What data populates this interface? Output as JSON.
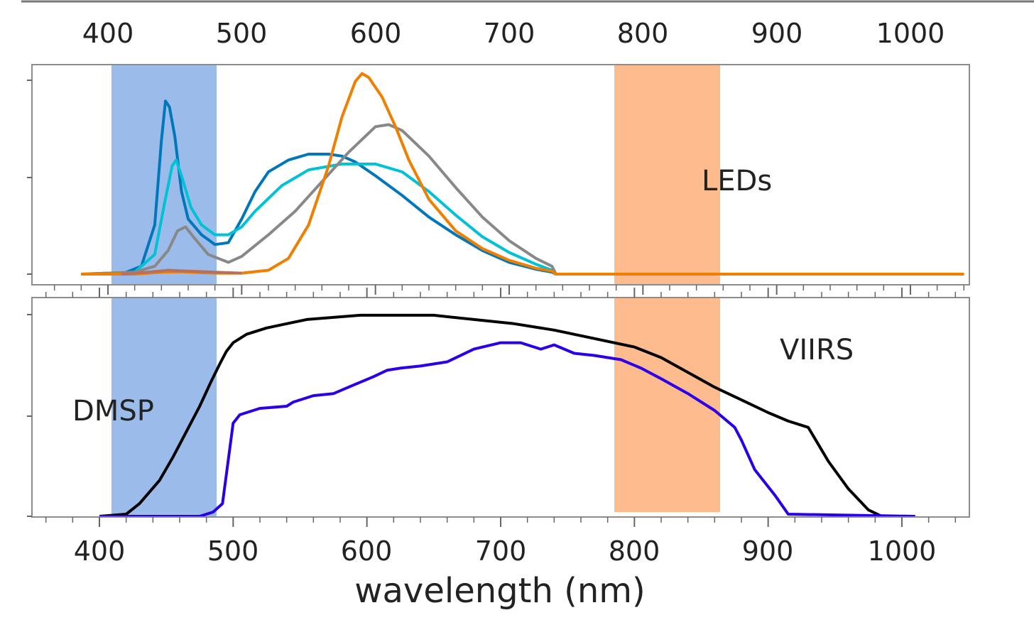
{
  "chart_data": [
    {
      "type": "line",
      "x_top_tick_labels": [
        "400",
        "500",
        "600",
        "700",
        "800",
        "900",
        "1000"
      ],
      "xlim": [
        360,
        1050
      ],
      "ylim": [
        0,
        1.05
      ],
      "annotation": "LEDs",
      "bands": [
        {
          "x0": 410,
          "x1": 488,
          "color": "#7aa6e3"
        },
        {
          "x0": 784,
          "x1": 863,
          "color": "#fdb482"
        }
      ],
      "series": [
        {
          "color": "#0077bb",
          "x": [
            380,
            410,
            425,
            435,
            440,
            443,
            446,
            450,
            455,
            460,
            470,
            480,
            490,
            500,
            510,
            520,
            535,
            550,
            565,
            575,
            585,
            600,
            620,
            640,
            660,
            680,
            700,
            720,
            732,
            735,
            1040
          ],
          "y": [
            0,
            0,
            0.04,
            0.25,
            0.68,
            0.88,
            0.85,
            0.7,
            0.42,
            0.28,
            0.2,
            0.15,
            0.16,
            0.28,
            0.42,
            0.52,
            0.58,
            0.61,
            0.61,
            0.6,
            0.57,
            0.5,
            0.4,
            0.29,
            0.2,
            0.12,
            0.06,
            0.025,
            0.01,
            0,
            0
          ]
        },
        {
          "color": "#00c2d6",
          "x": [
            380,
            420,
            435,
            442,
            448,
            451,
            455,
            462,
            470,
            480,
            490,
            500,
            510,
            530,
            550,
            575,
            600,
            620,
            640,
            660,
            680,
            700,
            720,
            732,
            735,
            1040
          ],
          "y": [
            0,
            0.01,
            0.1,
            0.35,
            0.55,
            0.58,
            0.5,
            0.34,
            0.25,
            0.2,
            0.2,
            0.24,
            0.32,
            0.45,
            0.53,
            0.56,
            0.56,
            0.52,
            0.42,
            0.3,
            0.19,
            0.11,
            0.05,
            0.02,
            0,
            0
          ]
        },
        {
          "color": "#888888",
          "x": [
            380,
            420,
            435,
            445,
            452,
            458,
            465,
            475,
            490,
            500,
            520,
            540,
            560,
            580,
            600,
            610,
            620,
            640,
            660,
            680,
            700,
            720,
            732,
            735,
            1040
          ],
          "y": [
            0,
            0.01,
            0.04,
            0.12,
            0.22,
            0.24,
            0.18,
            0.1,
            0.06,
            0.09,
            0.2,
            0.32,
            0.47,
            0.62,
            0.75,
            0.76,
            0.73,
            0.6,
            0.44,
            0.29,
            0.17,
            0.08,
            0.04,
            0,
            0
          ]
        },
        {
          "color": "#f07f00",
          "x": [
            380,
            420,
            440,
            455,
            480,
            500,
            520,
            535,
            550,
            565,
            575,
            585,
            590,
            595,
            605,
            615,
            625,
            640,
            660,
            680,
            700,
            720,
            732,
            735,
            1040
          ],
          "y": [
            0,
            0,
            0.01,
            0.012,
            0.005,
            0.005,
            0.02,
            0.08,
            0.25,
            0.55,
            0.8,
            0.98,
            1.02,
            1.0,
            0.9,
            0.75,
            0.58,
            0.38,
            0.22,
            0.13,
            0.07,
            0.03,
            0.015,
            0,
            0
          ]
        },
        {
          "color": "#b8705a",
          "x": [
            410,
            430,
            445,
            460,
            480,
            500
          ],
          "y": [
            0,
            0.01,
            0.02,
            0.015,
            0.01,
            0.005
          ]
        }
      ]
    },
    {
      "type": "line",
      "x_tick_labels": [
        "400",
        "500",
        "600",
        "700",
        "800",
        "900",
        "1000"
      ],
      "xlabel": "wavelength (nm)",
      "xlim": [
        360,
        1050
      ],
      "ylim": [
        0,
        1.05
      ],
      "annotations": [
        "DMSP",
        "VIIRS"
      ],
      "bands": [
        {
          "x0": 410,
          "x1": 488,
          "color": "#7aa6e3"
        },
        {
          "x0": 784,
          "x1": 863,
          "color": "#fdb482"
        }
      ],
      "series": [
        {
          "color": "#000000",
          "x": [
            400,
            420,
            430,
            445,
            455,
            465,
            475,
            483,
            490,
            495,
            500,
            510,
            525,
            540,
            555,
            575,
            595,
            620,
            650,
            680,
            710,
            740,
            770,
            800,
            820,
            840,
            860,
            880,
            900,
            915,
            930,
            945,
            960,
            975,
            985
          ],
          "y": [
            0,
            0.01,
            0.06,
            0.17,
            0.28,
            0.4,
            0.52,
            0.63,
            0.72,
            0.78,
            0.82,
            0.86,
            0.89,
            0.91,
            0.93,
            0.94,
            0.95,
            0.95,
            0.95,
            0.93,
            0.91,
            0.88,
            0.84,
            0.8,
            0.75,
            0.68,
            0.61,
            0.55,
            0.49,
            0.45,
            0.42,
            0.26,
            0.13,
            0.03,
            0
          ]
        },
        {
          "color": "#2b00e8",
          "x": [
            400,
            420,
            450,
            475,
            485,
            492,
            500,
            505,
            520,
            540,
            545,
            560,
            575,
            590,
            605,
            615,
            625,
            640,
            660,
            680,
            700,
            715,
            730,
            740,
            755,
            770,
            790,
            805,
            820,
            840,
            860,
            875,
            880,
            890,
            905,
            915,
            1010
          ],
          "y": [
            0,
            0,
            0,
            0,
            0.02,
            0.06,
            0.44,
            0.48,
            0.51,
            0.52,
            0.54,
            0.57,
            0.58,
            0.62,
            0.66,
            0.69,
            0.7,
            0.71,
            0.73,
            0.79,
            0.82,
            0.82,
            0.79,
            0.81,
            0.77,
            0.76,
            0.74,
            0.7,
            0.65,
            0.58,
            0.5,
            0.42,
            0.36,
            0.22,
            0.1,
            0.01,
            0
          ]
        }
      ]
    }
  ]
}
